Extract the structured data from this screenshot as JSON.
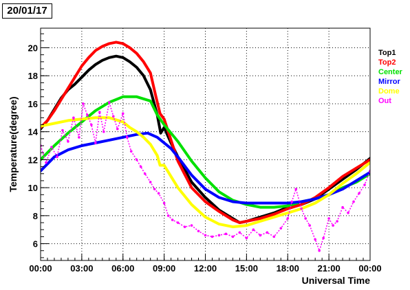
{
  "date_label": "20/01/17",
  "chart_data": {
    "type": "scatter",
    "title": "",
    "xlabel": "Universal Time",
    "ylabel": "Temperature(degree)",
    "xlim": [
      0,
      24
    ],
    "ylim": [
      4.8,
      21.4
    ],
    "grid": true,
    "legend_placement": "right",
    "x_ticks": [
      {
        "value": 0,
        "label": "00:00"
      },
      {
        "value": 3,
        "label": "03:00"
      },
      {
        "value": 6,
        "label": "06:00"
      },
      {
        "value": 9,
        "label": "09:00"
      },
      {
        "value": 12,
        "label": "12:00"
      },
      {
        "value": 15,
        "label": "15:00"
      },
      {
        "value": 18,
        "label": "18:00"
      },
      {
        "value": 21,
        "label": "21:00"
      },
      {
        "value": 24,
        "label": "00:00"
      }
    ],
    "y_ticks": [
      {
        "value": 6,
        "label": "6"
      },
      {
        "value": 8,
        "label": "8"
      },
      {
        "value": 10,
        "label": "10"
      },
      {
        "value": 12,
        "label": "12"
      },
      {
        "value": 14,
        "label": "14"
      },
      {
        "value": 16,
        "label": "16"
      },
      {
        "value": 18,
        "label": "18"
      },
      {
        "value": 20,
        "label": "20"
      }
    ],
    "series": [
      {
        "name": "Top1",
        "color": "#000000",
        "x": [
          0,
          0.5,
          1,
          1.5,
          2,
          2.5,
          3,
          3.5,
          4,
          4.5,
          5,
          5.5,
          6,
          6.5,
          7,
          7.5,
          8,
          8.5,
          8.75,
          9,
          9.5,
          10,
          11,
          12,
          13,
          14,
          14.5,
          15,
          16,
          17,
          18,
          19,
          20,
          21,
          22,
          23,
          24
        ],
        "y": [
          14.2,
          14.8,
          15.6,
          16.4,
          17.0,
          17.4,
          17.9,
          18.4,
          18.8,
          19.1,
          19.3,
          19.4,
          19.3,
          19.0,
          18.6,
          18.0,
          17.0,
          15.2,
          13.9,
          14.3,
          13.2,
          12.2,
          10.4,
          9.3,
          8.4,
          7.8,
          7.5,
          7.6,
          7.9,
          8.2,
          8.6,
          8.8,
          9.2,
          9.9,
          10.6,
          11.3,
          12.1
        ]
      },
      {
        "name": "Top2",
        "color": "#ff0000",
        "x": [
          0,
          0.5,
          1,
          1.5,
          2,
          2.5,
          3,
          3.5,
          4,
          4.5,
          5,
          5.5,
          6,
          6.5,
          7,
          7.5,
          8,
          8.4,
          8.7,
          9,
          9.5,
          10,
          11,
          12,
          13,
          14,
          14.5,
          15,
          16,
          17,
          18,
          19,
          20,
          21,
          22,
          23,
          24
        ],
        "y": [
          14.3,
          14.8,
          15.5,
          16.3,
          17.1,
          17.9,
          18.7,
          19.3,
          19.8,
          20.1,
          20.3,
          20.4,
          20.3,
          20.0,
          19.6,
          19.0,
          18.2,
          16.5,
          15.3,
          14.9,
          13.4,
          11.9,
          10.0,
          9.0,
          8.3,
          7.7,
          7.5,
          7.6,
          7.8,
          8.1,
          8.5,
          8.8,
          9.3,
          10.0,
          10.8,
          11.4,
          12.0
        ]
      },
      {
        "name": "Center",
        "color": "#00e000",
        "x": [
          0,
          1,
          2,
          3,
          4,
          5,
          6,
          7,
          8,
          8.5,
          9,
          10,
          11,
          12,
          13,
          14,
          15,
          16,
          17,
          18,
          19,
          20,
          21,
          22,
          23,
          24
        ],
        "y": [
          12.0,
          13.0,
          13.9,
          14.7,
          15.5,
          16.1,
          16.5,
          16.5,
          16.2,
          15.2,
          14.5,
          13.3,
          11.9,
          10.7,
          9.7,
          9.1,
          8.8,
          8.6,
          8.6,
          8.7,
          9.0,
          9.2,
          9.5,
          10.0,
          10.4,
          11.0
        ]
      },
      {
        "name": "Mirror",
        "color": "#0000ff",
        "x": [
          0,
          1,
          2,
          3,
          4,
          5,
          6,
          7,
          7.8,
          8.5,
          9.5,
          10,
          11,
          12,
          13,
          14,
          15,
          16,
          17,
          18,
          19,
          20,
          21,
          22,
          23,
          24
        ],
        "y": [
          11.2,
          12.2,
          12.7,
          13.0,
          13.2,
          13.4,
          13.6,
          13.8,
          13.9,
          13.6,
          12.8,
          12.2,
          10.9,
          9.9,
          9.3,
          9.0,
          8.9,
          8.9,
          8.9,
          8.9,
          9.0,
          9.2,
          9.5,
          9.9,
          10.5,
          11.1
        ]
      },
      {
        "name": "Dome",
        "color": "#ffff00",
        "x": [
          0,
          1,
          2,
          3,
          4,
          5,
          6,
          6.5,
          7,
          7.5,
          8,
          8.5,
          8.7,
          9,
          9.5,
          10,
          11,
          12,
          13,
          14,
          15,
          16,
          17,
          18,
          19,
          20,
          21,
          22,
          23,
          24
        ],
        "y": [
          14.4,
          14.6,
          14.8,
          14.9,
          15.0,
          15.0,
          14.7,
          14.3,
          14.0,
          13.6,
          13.1,
          12.3,
          11.6,
          11.6,
          10.8,
          10.0,
          8.8,
          7.9,
          7.4,
          7.2,
          7.3,
          7.6,
          7.9,
          8.2,
          8.5,
          8.9,
          9.5,
          10.3,
          11.0,
          11.8
        ]
      },
      {
        "name": "Out",
        "color": "#ff00ff",
        "x": [
          0,
          0.4,
          0.8,
          1.2,
          1.6,
          2,
          2.4,
          2.8,
          3.1,
          3.4,
          3.7,
          4,
          4.3,
          4.6,
          5,
          5.3,
          5.6,
          6,
          6.3,
          6.6,
          7,
          7.3,
          7.6,
          8,
          8.3,
          8.6,
          9,
          9.3,
          9.6,
          10,
          10.5,
          11,
          11.5,
          12,
          12.5,
          13,
          13.5,
          14,
          14.5,
          15,
          15.5,
          16,
          16.5,
          17,
          17.5,
          18,
          18.3,
          18.6,
          19,
          19.3,
          19.6,
          20,
          20.3,
          20.6,
          21,
          21.3,
          21.6,
          22,
          22.4,
          22.8,
          23.2,
          23.6,
          24
        ],
        "y": [
          13.0,
          11.8,
          12.9,
          12.2,
          14.1,
          13.3,
          15.0,
          13.6,
          16.0,
          15.2,
          14.5,
          13.2,
          15.4,
          14.0,
          16.1,
          15.1,
          14.2,
          15.3,
          13.6,
          12.6,
          12.0,
          11.5,
          11.0,
          10.4,
          9.9,
          9.6,
          8.9,
          8.0,
          7.7,
          7.5,
          7.2,
          7.3,
          6.9,
          6.6,
          6.5,
          6.6,
          6.7,
          6.5,
          6.8,
          6.4,
          7.0,
          6.6,
          6.8,
          6.5,
          7.1,
          7.8,
          9.0,
          9.9,
          8.5,
          7.8,
          7.3,
          6.3,
          5.5,
          6.4,
          7.8,
          7.3,
          7.6,
          8.6,
          8.2,
          9.0,
          9.6,
          10.2,
          11.2
        ]
      }
    ]
  }
}
